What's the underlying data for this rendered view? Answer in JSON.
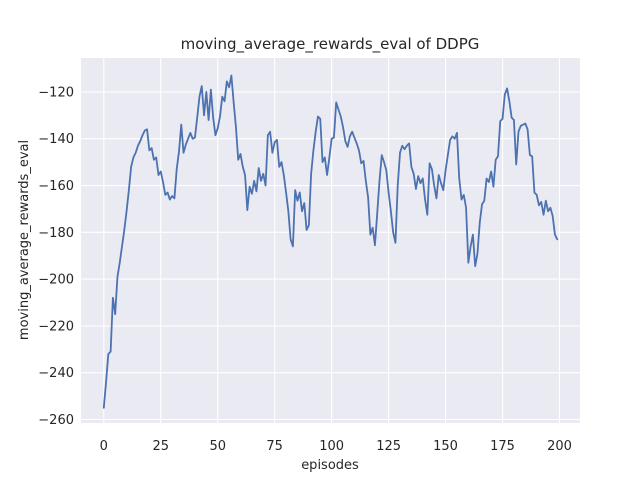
{
  "chart_data": {
    "type": "line",
    "title": "moving_average_rewards_eval of DDPG",
    "xlabel": "episodes",
    "ylabel": "moving_average_rewards_eval",
    "x_ticks": [
      0,
      25,
      50,
      75,
      100,
      125,
      150,
      175,
      200
    ],
    "y_ticks": [
      -120,
      -140,
      -160,
      -180,
      -200,
      -220,
      -240,
      -260
    ],
    "xlim": [
      -10,
      209
    ],
    "ylim": [
      -261.5,
      -105.5
    ],
    "grid": true,
    "legend": "none",
    "style": "seaborn-darkgrid",
    "colors": {
      "line": "#4c72b0",
      "axes_bg": "#eaeaf2",
      "grid": "#ffffff",
      "text": "#262626",
      "figure_bg": "#ffffff"
    },
    "series": [
      {
        "name": "moving_average_rewards_eval",
        "x_start": 0,
        "x_step": 1,
        "y": [
          -255,
          -244,
          -232,
          -231,
          -208,
          -215,
          -199,
          -193,
          -186,
          -179,
          -171,
          -162,
          -152,
          -148,
          -146,
          -143,
          -141,
          -138.5,
          -136.5,
          -136,
          -145,
          -144,
          -149,
          -148,
          -155.5,
          -154,
          -158.5,
          -164,
          -163,
          -166,
          -164.5,
          -165.5,
          -153,
          -145.5,
          -134,
          -146,
          -142.5,
          -140,
          -137.5,
          -140,
          -139.5,
          -131,
          -122,
          -117.5,
          -130,
          -120,
          -132,
          -119,
          -131,
          -138.5,
          -135.5,
          -130.5,
          -122,
          -124,
          -115.5,
          -118,
          -113,
          -124.5,
          -135,
          -149,
          -146.5,
          -152,
          -155.5,
          -170.5,
          -160.5,
          -163.5,
          -158,
          -162.5,
          -152.5,
          -158,
          -155,
          -160,
          -138.5,
          -137,
          -146,
          -141.5,
          -140.5,
          -152,
          -150,
          -155.5,
          -163,
          -171,
          -183,
          -186,
          -162,
          -166.5,
          -163,
          -171,
          -167.5,
          -179,
          -177,
          -155,
          -145,
          -137,
          -130.5,
          -131.5,
          -150,
          -148,
          -155.5,
          -148,
          -140,
          -139.5,
          -124.5,
          -127.5,
          -130.5,
          -135,
          -141,
          -143.5,
          -139,
          -137,
          -139.5,
          -142,
          -145,
          -150.5,
          -149.5,
          -158,
          -165,
          -181,
          -178,
          -185.5,
          -172,
          -158,
          -147,
          -150,
          -153.5,
          -163,
          -171,
          -180,
          -184.5,
          -160,
          -146,
          -143,
          -144.5,
          -143,
          -142,
          -152,
          -155,
          -161.5,
          -156,
          -159,
          -157,
          -166,
          -172.5,
          -150.5,
          -153,
          -160,
          -165.5,
          -155.5,
          -159,
          -162,
          -153.5,
          -147,
          -140.5,
          -139,
          -140,
          -137.5,
          -157,
          -166,
          -164,
          -169.5,
          -193,
          -186,
          -181,
          -194.5,
          -189,
          -176,
          -168,
          -166.5,
          -157,
          -158.5,
          -154,
          -160.5,
          -149,
          -147.5,
          -132.5,
          -131.5,
          -121,
          -118.5,
          -124,
          -131,
          -132,
          -151,
          -137,
          -134.5,
          -134,
          -133.5,
          -136,
          -147,
          -147.5,
          -163,
          -164,
          -168.5,
          -167,
          -172.5,
          -166.5,
          -171,
          -169.5,
          -173,
          -181,
          -183
        ]
      }
    ]
  }
}
